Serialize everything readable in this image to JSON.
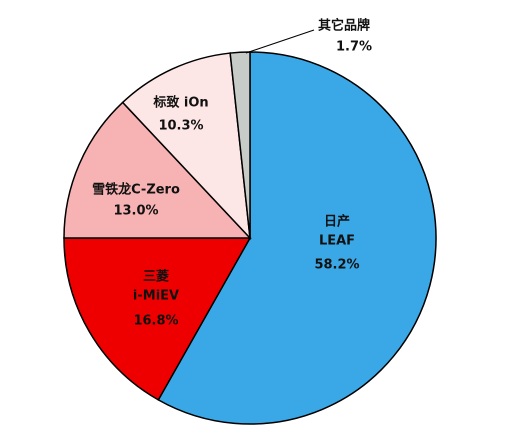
{
  "chart_data": {
    "type": "pie",
    "categories": [
      [
        "日产",
        "LEAF"
      ],
      [
        "三菱",
        "i-MiEV"
      ],
      [
        "雪铁龙C-Zero"
      ],
      [
        "标致 iOn"
      ],
      [
        "其它品牌"
      ]
    ],
    "values": [
      58.2,
      16.8,
      13.0,
      10.3,
      1.7
    ],
    "value_labels": [
      "58.2%",
      "16.8%",
      "13.0%",
      "10.3%",
      "1.7%"
    ],
    "colors": [
      "#3aa8e6",
      "#ee0000",
      "#f7b3b3",
      "#fde6e6",
      "#c8ccc8"
    ]
  }
}
